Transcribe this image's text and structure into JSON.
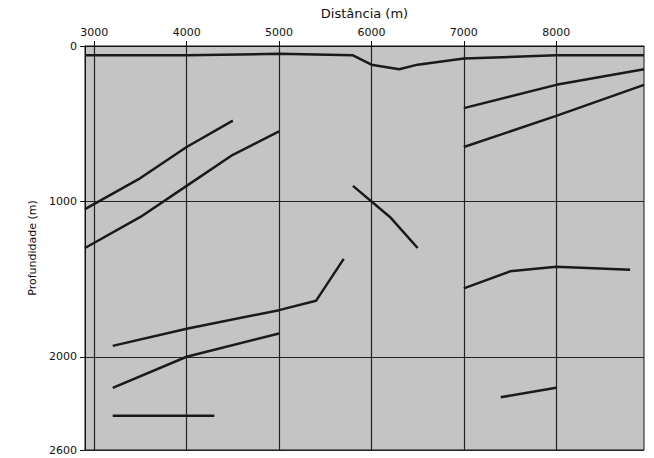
{
  "chart_data": {
    "type": "line",
    "x_label": "Distância (m)",
    "y_label": "Profundidade (m)",
    "xlim": [
      2900,
      8950
    ],
    "xticks": [
      3000,
      4000,
      5000,
      6000,
      7000,
      8000
    ],
    "ylim": [
      0,
      2600
    ],
    "yticks": [
      0,
      1000,
      2000
    ],
    "grid": true,
    "color": "#1a1a1a",
    "series": [
      {
        "x": [
          2900,
          4000,
          5000,
          5800,
          6000,
          6300,
          6500,
          7000,
          8000,
          8950
        ],
        "values": [
          60,
          60,
          50,
          60,
          120,
          150,
          120,
          80,
          60,
          60
        ]
      },
      {
        "x": [
          2900,
          3500,
          4000,
          4500
        ],
        "values": [
          1050,
          850,
          650,
          480
        ]
      },
      {
        "x": [
          2900,
          3500,
          4000,
          4500,
          5000
        ],
        "values": [
          1300,
          1100,
          900,
          700,
          550
        ]
      },
      {
        "x": [
          3200,
          4000,
          5000,
          5400,
          5700
        ],
        "values": [
          1930,
          1820,
          1700,
          1640,
          1370
        ]
      },
      {
        "x": [
          3200,
          4000,
          5000
        ],
        "values": [
          2200,
          2000,
          1850
        ]
      },
      {
        "x": [
          3200,
          4300
        ],
        "values": [
          2380,
          2380
        ]
      },
      {
        "x": [
          5800,
          6200,
          6500
        ],
        "values": [
          900,
          1100,
          1300
        ]
      },
      {
        "x": [
          7000,
          8000,
          8950
        ],
        "values": [
          650,
          450,
          250
        ]
      },
      {
        "x": [
          7000,
          8000,
          8950
        ],
        "values": [
          400,
          250,
          150
        ]
      },
      {
        "x": [
          7000,
          7500,
          8000,
          8800
        ],
        "values": [
          1560,
          1450,
          1420,
          1440
        ]
      },
      {
        "x": [
          7400,
          8000
        ],
        "values": [
          2260,
          2200
        ]
      }
    ]
  }
}
